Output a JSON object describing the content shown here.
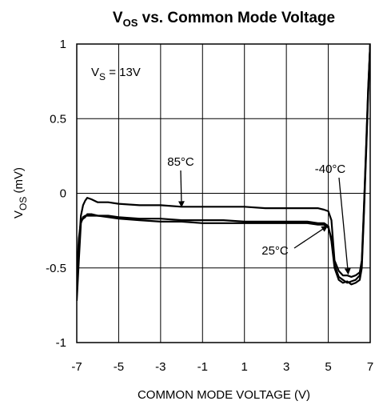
{
  "chart_data": {
    "type": "line",
    "title": {
      "main": "V",
      "sub": "OS",
      "rest": " vs. Common Mode Voltage"
    },
    "xlabel": "COMMON MODE VOLTAGE (V)",
    "ylabel": {
      "main": "V",
      "sub": "OS",
      "rest": " (mV)"
    },
    "xlim": [
      -7,
      7
    ],
    "ylim": [
      -1,
      1
    ],
    "xticks": [
      -7,
      -5,
      -3,
      -1,
      1,
      3,
      5,
      7
    ],
    "xtick_labels": [
      "-7",
      "-5",
      "-3",
      "-1",
      "1",
      "3",
      "5",
      "7"
    ],
    "yticks": [
      1,
      0.5,
      0,
      -0.5,
      -1
    ],
    "ytick_labels": [
      "1",
      "0.5",
      "0",
      "-0.5",
      "-1"
    ],
    "grid": true,
    "condition": {
      "main": "V",
      "sub": "S",
      "rest": " = 13V"
    },
    "series": [
      {
        "name": "85°C",
        "x": [
          -7.0,
          -6.9,
          -6.8,
          -6.7,
          -6.6,
          -6.5,
          -6.3,
          -6.0,
          -5.5,
          -5.0,
          -4.0,
          -3.0,
          -2.0,
          -1.0,
          0.0,
          1.0,
          2.0,
          3.0,
          4.0,
          4.5,
          4.8,
          5.0,
          5.15,
          5.3,
          5.5,
          5.7,
          5.9,
          6.1,
          6.3,
          6.5,
          6.6,
          6.7,
          6.8,
          6.9,
          7.0
        ],
        "y": [
          -0.65,
          -0.35,
          -0.15,
          -0.08,
          -0.05,
          -0.03,
          -0.04,
          -0.06,
          -0.06,
          -0.07,
          -0.08,
          -0.08,
          -0.09,
          -0.09,
          -0.09,
          -0.09,
          -0.1,
          -0.1,
          -0.1,
          -0.1,
          -0.11,
          -0.12,
          -0.18,
          -0.45,
          -0.52,
          -0.55,
          -0.55,
          -0.56,
          -0.55,
          -0.53,
          -0.45,
          -0.1,
          0.3,
          0.7,
          1.0
        ]
      },
      {
        "name": "25°C",
        "x": [
          -7.0,
          -6.9,
          -6.8,
          -6.7,
          -6.6,
          -6.5,
          -6.3,
          -6.0,
          -5.5,
          -5.0,
          -4.0,
          -3.0,
          -2.0,
          -1.0,
          0.0,
          1.0,
          2.0,
          3.0,
          4.0,
          4.5,
          4.8,
          5.0,
          5.15,
          5.3,
          5.5,
          5.7,
          5.9,
          6.1,
          6.3,
          6.5,
          6.6,
          6.7,
          6.8,
          6.9,
          7.0
        ],
        "y": [
          -0.72,
          -0.45,
          -0.2,
          -0.16,
          -0.15,
          -0.15,
          -0.15,
          -0.15,
          -0.15,
          -0.16,
          -0.17,
          -0.17,
          -0.18,
          -0.18,
          -0.18,
          -0.19,
          -0.19,
          -0.19,
          -0.19,
          -0.2,
          -0.2,
          -0.22,
          -0.32,
          -0.5,
          -0.58,
          -0.6,
          -0.59,
          -0.61,
          -0.6,
          -0.58,
          -0.5,
          -0.15,
          0.25,
          0.65,
          1.0
        ]
      },
      {
        "name": "-40°C",
        "x": [
          -7.0,
          -6.9,
          -6.8,
          -6.7,
          -6.6,
          -6.5,
          -6.3,
          -6.0,
          -5.5,
          -5.0,
          -4.0,
          -3.0,
          -2.0,
          -1.0,
          0.0,
          1.0,
          2.0,
          3.0,
          4.0,
          4.5,
          4.8,
          5.0,
          5.15,
          5.3,
          5.5,
          5.7,
          5.9,
          6.1,
          6.3,
          6.5,
          6.6,
          6.7,
          6.8,
          6.9,
          7.0
        ],
        "y": [
          -0.55,
          -0.3,
          -0.19,
          -0.17,
          -0.16,
          -0.14,
          -0.14,
          -0.15,
          -0.16,
          -0.17,
          -0.18,
          -0.19,
          -0.19,
          -0.2,
          -0.2,
          -0.2,
          -0.2,
          -0.2,
          -0.2,
          -0.21,
          -0.21,
          -0.23,
          -0.3,
          -0.48,
          -0.56,
          -0.58,
          -0.6,
          -0.59,
          -0.58,
          -0.55,
          -0.47,
          -0.12,
          0.28,
          0.68,
          1.0
        ]
      }
    ],
    "annotations": [
      {
        "text": "85°C",
        "arrow_x": -2.0,
        "arrow_y": -0.09
      },
      {
        "text": "25°C",
        "arrow_x": 4.95,
        "arrow_y": -0.22
      },
      {
        "text": "-40°C",
        "arrow_x": 5.95,
        "arrow_y": -0.54
      }
    ]
  }
}
